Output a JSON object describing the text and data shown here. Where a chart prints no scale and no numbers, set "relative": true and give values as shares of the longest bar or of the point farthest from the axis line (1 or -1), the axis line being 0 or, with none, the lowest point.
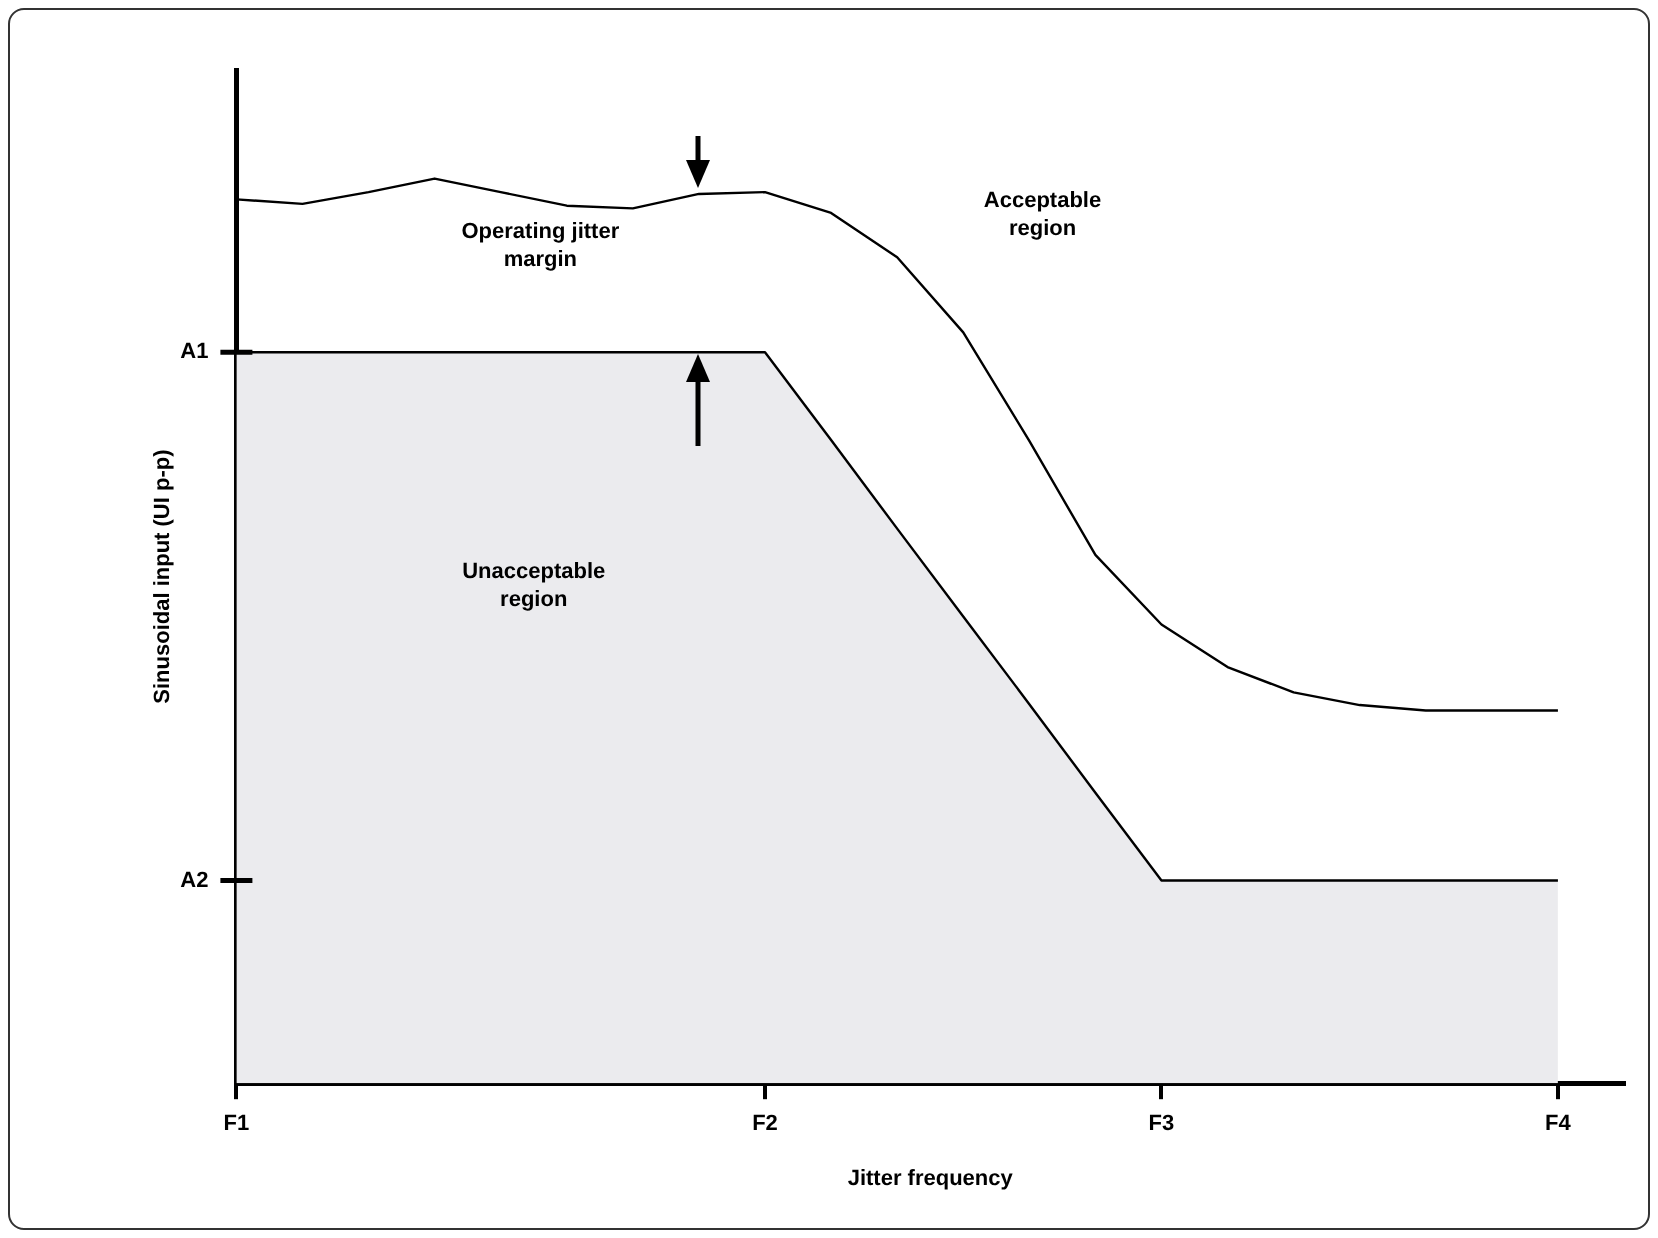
{
  "chart_data": {
    "type": "line",
    "relative": true,
    "xlabel": "Jitter frequency",
    "ylabel": "Sinusoidal input (UI p-p)",
    "categories": [
      "F1",
      null,
      null,
      null,
      null,
      null,
      null,
      null,
      "F2",
      null,
      null,
      null,
      null,
      null,
      "F3",
      null,
      null,
      null,
      null,
      null,
      "F4",
      null
    ],
    "series": [
      {
        "type": "line",
        "color": "#000000",
        "values": [
          0.977,
          0.972,
          0.985,
          1,
          0.985,
          0.97,
          0.967,
          0.983,
          0.985,
          0.962,
          0.913,
          0.83,
          0.71,
          0.584,
          0.507,
          0.46,
          0.432,
          0.418,
          0.412,
          0.412,
          0.412,
          null
        ]
      },
      {
        "type": "area",
        "color": "#ebebee",
        "values": [
          0.808,
          0.808,
          0.808,
          0.808,
          0.808,
          0.808,
          0.808,
          0.808,
          0.808,
          0.711,
          0.613,
          0.516,
          0.419,
          0.321,
          0.224,
          0.224,
          0.224,
          0.224,
          0.224,
          0.224,
          0.224,
          null
        ]
      }
    ],
    "annotations": [
      "Operating jitter margin",
      "Acceptable region",
      "Unacceptable region",
      "A1",
      "A2"
    ],
    "grid": false,
    "legend": false,
    "marker": "none",
    "line_style": "solid"
  }
}
